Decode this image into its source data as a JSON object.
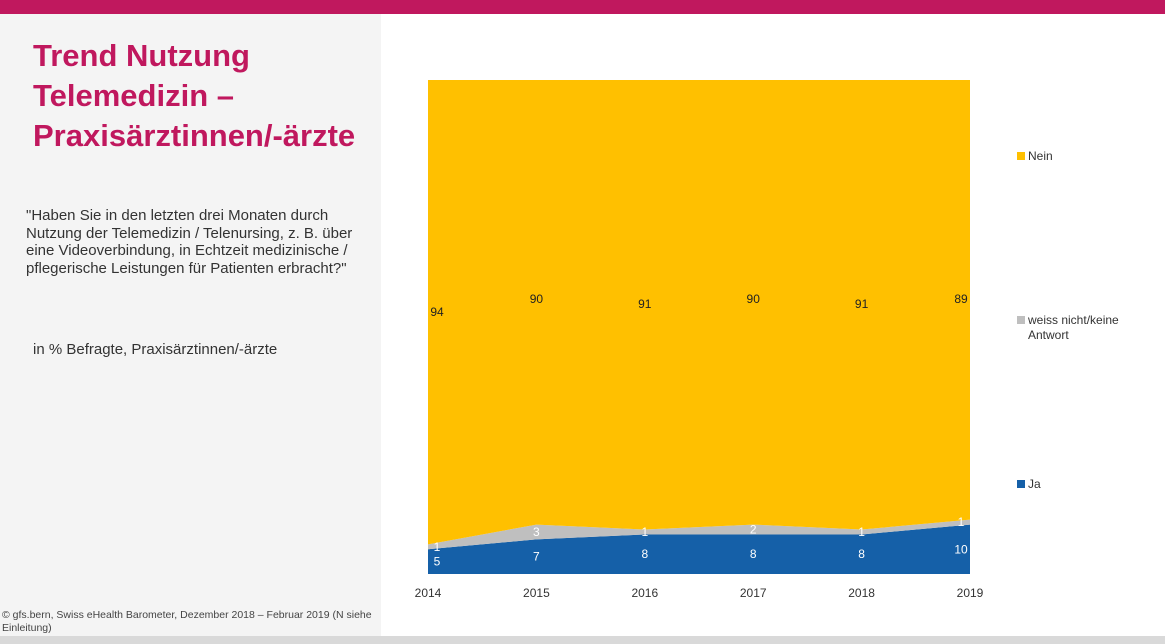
{
  "panel": {
    "title": "Trend Nutzung Telemedizin – Praxisärztinnen/-ärzte",
    "question": "\"Haben Sie in den letzten drei Monaten durch Nutzung der Telemedizin / Telenursing, z. B. über eine Videoverbindung, in Echtzeit medizinische / pflegerische Leistungen für Patienten erbracht?\"",
    "subnote": "in % Befragte, Praxisärztinnen/-ärzte",
    "source": "© gfs.bern, Swiss eHealth Barometer, Dezember 2018 – Februar 2019 (N siehe Einleitung)"
  },
  "colors": {
    "accent": "#c0185e",
    "ja": "#1560a8",
    "weiss_nicht": "#bfbfbf",
    "nein": "#ffc000"
  },
  "chart_data": {
    "type": "area",
    "stacked": true,
    "x": [
      "2014",
      "2015",
      "2016",
      "2017",
      "2018",
      "2019"
    ],
    "series": [
      {
        "name": "Ja",
        "values": [
          5,
          7,
          8,
          8,
          8,
          10
        ]
      },
      {
        "name": "weiss nicht/keine Antwort",
        "values": [
          1,
          3,
          1,
          2,
          1,
          1
        ]
      },
      {
        "name": "Nein",
        "values": [
          94,
          90,
          91,
          90,
          91,
          89
        ]
      }
    ],
    "ylim": [
      0,
      100
    ],
    "legend": "right",
    "grid": false
  }
}
